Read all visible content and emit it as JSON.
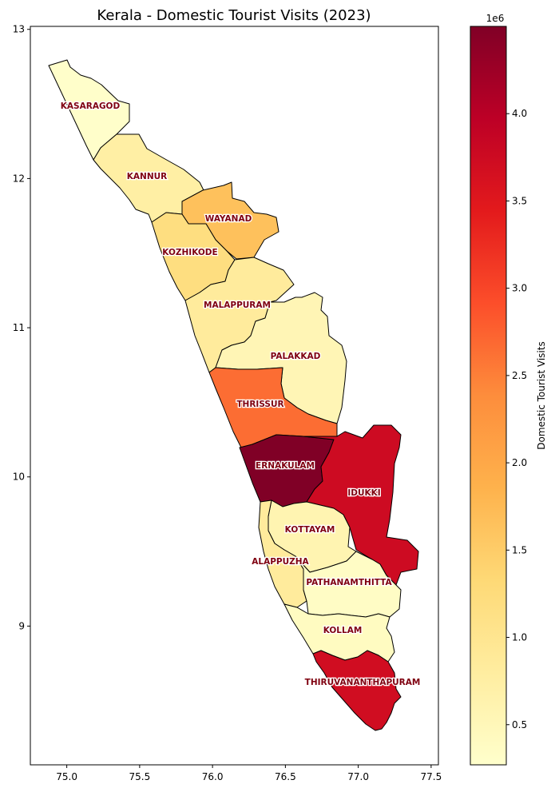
{
  "title": "Kerala - Domestic Tourist Visits (2023)",
  "colorbar": {
    "label": "Domestic Tourist Visits",
    "multiplier": "1e6",
    "ticks": [
      "0.5",
      "1.0",
      "1.5",
      "2.0",
      "2.5",
      "3.0",
      "3.5",
      "4.0"
    ],
    "range": [
      0.27,
      4.5
    ],
    "colormap": [
      "#ffffcc",
      "#ffeda0",
      "#fed976",
      "#feb24c",
      "#fd8d3c",
      "#fc4e2a",
      "#e31a1c",
      "#bd0026",
      "#800026"
    ]
  },
  "axes": {
    "x_ticks": [
      "75.0",
      "75.5",
      "76.0",
      "76.5",
      "77.0",
      "77.5"
    ],
    "y_ticks": [
      "9",
      "10",
      "11",
      "12",
      "13"
    ]
  },
  "chart_data": {
    "type": "choropleth",
    "title": "Kerala - Domestic Tourist Visits (2023)",
    "value_label": "Domestic Tourist Visits",
    "value_range": [
      270000,
      4500000
    ],
    "xlim": [
      74.75,
      77.55
    ],
    "ylim": [
      8.07,
      13.02
    ],
    "districts": [
      {
        "name": "KASARAGOD",
        "value": 300000
      },
      {
        "name": "KANNUR",
        "value": 750000
      },
      {
        "name": "WAYANAD",
        "value": 1650000
      },
      {
        "name": "KOZHIKODE",
        "value": 1200000
      },
      {
        "name": "MALAPPURAM",
        "value": 850000
      },
      {
        "name": "PALAKKAD",
        "value": 550000
      },
      {
        "name": "THRISSUR",
        "value": 2650000
      },
      {
        "name": "ERNAKULAM",
        "value": 4500000
      },
      {
        "name": "IDUKKI",
        "value": 3750000
      },
      {
        "name": "KOTTAYAM",
        "value": 600000
      },
      {
        "name": "ALAPPUZHA",
        "value": 850000
      },
      {
        "name": "PATHANAMTHITTA",
        "value": 350000
      },
      {
        "name": "KOLLAM",
        "value": 400000
      },
      {
        "name": "THIRUVANANTHAPURAM",
        "value": 3700000
      }
    ]
  }
}
